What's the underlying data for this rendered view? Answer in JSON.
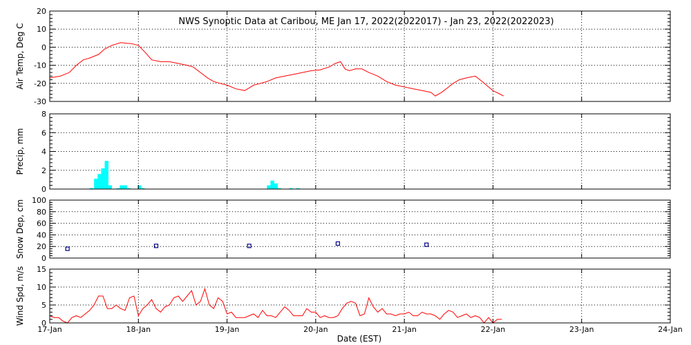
{
  "colors": {
    "air_temp": "#ff0000",
    "precip": "#00ffff",
    "snow": "#000080",
    "wind": "#ff0000",
    "axes": "#000000"
  },
  "chart_data": {
    "title": "NWS Synoptic Data at Caribou, ME   Jan 17, 2022(2022017) - Jan 23, 2022(2022023)",
    "xlabel": "Date (EST)",
    "x_range": [
      0,
      7
    ],
    "x_ticks": [
      {
        "x": 0,
        "label": "17-Jan"
      },
      {
        "x": 1,
        "label": "18-Jan"
      },
      {
        "x": 2,
        "label": "19-Jan"
      },
      {
        "x": 3,
        "label": "20-Jan"
      },
      {
        "x": 4,
        "label": "21-Jan"
      },
      {
        "x": 5,
        "label": "22-Jan"
      },
      {
        "x": 6,
        "label": "23-Jan"
      },
      {
        "x": 7,
        "label": "24-Jan"
      }
    ],
    "panels": [
      {
        "id": "air_temp",
        "type": "line",
        "ylabel": "Air Temp, Deg C",
        "ylim": [
          -30,
          20
        ],
        "y_ticks": [
          20,
          10,
          0,
          -10,
          -20,
          -30
        ],
        "grid": true,
        "series": [
          {
            "x": [
              0,
              0.12,
              0.22,
              0.3,
              0.38,
              0.45,
              0.55,
              0.62,
              0.7,
              0.8,
              0.86,
              0.92,
              1.0,
              1.08,
              1.15,
              1.25,
              1.35,
              1.45,
              1.55,
              1.62,
              1.7,
              1.78,
              1.85,
              1.92,
              2.0,
              2.1,
              2.2,
              2.3,
              2.38,
              2.45,
              2.55,
              2.65,
              2.75,
              2.85,
              2.95,
              3.05,
              3.15,
              3.22,
              3.28,
              3.33,
              3.38,
              3.45,
              3.52,
              3.6,
              3.7,
              3.8,
              3.9,
              4.0,
              4.1,
              4.2,
              4.3,
              4.35,
              4.42,
              4.5,
              4.55,
              4.62,
              4.7,
              4.8,
              4.88,
              4.95,
              5.0,
              5.08,
              5.12
            ],
            "y": [
              -17,
              -16,
              -14,
              -10,
              -7,
              -6,
              -4,
              -1,
              1,
              2.5,
              2.2,
              2,
              1,
              -3,
              -7,
              -8,
              -8,
              -9,
              -10,
              -11,
              -14,
              -17,
              -19,
              -20,
              -21,
              -23,
              -24,
              -21,
              -20,
              -19,
              -17,
              -16,
              -15,
              -14,
              -13,
              -12.5,
              -11,
              -9,
              -8,
              -12,
              -13,
              -12,
              -12,
              -14,
              -16,
              -19,
              -21,
              -22,
              -23,
              -24,
              -25,
              -27,
              -25,
              -22,
              -20,
              -18,
              -17,
              -16,
              -19,
              -22,
              -24,
              -26,
              -27
            ]
          }
        ]
      },
      {
        "id": "precip",
        "type": "bar",
        "ylabel": "Precip, mm",
        "ylim": [
          0,
          8
        ],
        "y_ticks": [
          8,
          6,
          4,
          2,
          0
        ],
        "grid": true,
        "bar_width": 0.042,
        "bars": [
          {
            "x": 0.45,
            "value": 0.1
          },
          {
            "x": 0.5,
            "value": 1.1
          },
          {
            "x": 0.54,
            "value": 1.6
          },
          {
            "x": 0.58,
            "value": 2.2
          },
          {
            "x": 0.62,
            "value": 3.0
          },
          {
            "x": 0.66,
            "value": 0.4
          },
          {
            "x": 0.75,
            "value": 0.1
          },
          {
            "x": 0.79,
            "value": 0.4
          },
          {
            "x": 0.83,
            "value": 0.4
          },
          {
            "x": 0.87,
            "value": 0.1
          },
          {
            "x": 0.99,
            "value": 0.4
          },
          {
            "x": 1.03,
            "value": 0.1
          },
          {
            "x": 2.45,
            "value": 0.4
          },
          {
            "x": 2.49,
            "value": 0.9
          },
          {
            "x": 2.53,
            "value": 0.6
          },
          {
            "x": 2.57,
            "value": 0.1
          },
          {
            "x": 2.7,
            "value": 0.1
          },
          {
            "x": 2.78,
            "value": 0.1
          }
        ]
      },
      {
        "id": "snow",
        "type": "scatter",
        "ylabel": "Snow Dep, cm",
        "ylim": [
          0,
          100
        ],
        "y_ticks": [
          100,
          80,
          60,
          40,
          20,
          0
        ],
        "grid": true,
        "points": [
          {
            "x": 0.2,
            "y": 16
          },
          {
            "x": 1.2,
            "y": 21
          },
          {
            "x": 2.25,
            "y": 21
          },
          {
            "x": 3.25,
            "y": 25
          },
          {
            "x": 4.25,
            "y": 23
          }
        ]
      },
      {
        "id": "wind",
        "type": "line",
        "ylabel": "Wind Spd, m/s",
        "ylim": [
          0,
          15
        ],
        "y_ticks": [
          15,
          10,
          5,
          0
        ],
        "grid": true,
        "series": [
          {
            "x": [
              0,
              0.05,
              0.1,
              0.15,
              0.2,
              0.25,
              0.3,
              0.35,
              0.4,
              0.45,
              0.5,
              0.55,
              0.6,
              0.65,
              0.7,
              0.75,
              0.8,
              0.85,
              0.9,
              0.95,
              1.0,
              1.05,
              1.1,
              1.15,
              1.2,
              1.25,
              1.3,
              1.35,
              1.4,
              1.45,
              1.5,
              1.55,
              1.6,
              1.65,
              1.7,
              1.75,
              1.8,
              1.85,
              1.9,
              1.95,
              2.0,
              2.05,
              2.1,
              2.15,
              2.2,
              2.25,
              2.3,
              2.35,
              2.4,
              2.45,
              2.5,
              2.55,
              2.6,
              2.65,
              2.7,
              2.75,
              2.8,
              2.85,
              2.9,
              2.95,
              3.0,
              3.05,
              3.1,
              3.15,
              3.2,
              3.25,
              3.3,
              3.35,
              3.4,
              3.45,
              3.5,
              3.55,
              3.6,
              3.65,
              3.7,
              3.75,
              3.8,
              3.85,
              3.9,
              3.95,
              4.0,
              4.05,
              4.1,
              4.15,
              4.2,
              4.25,
              4.3,
              4.35,
              4.4,
              4.45,
              4.5,
              4.55,
              4.6,
              4.65,
              4.7,
              4.75,
              4.8,
              4.85,
              4.9,
              4.95,
              5.0,
              5.05,
              5.1
            ],
            "y": [
              2,
              1.5,
              1.5,
              0.5,
              0,
              1.5,
              2,
              1.5,
              2.5,
              3.5,
              5,
              7.5,
              7.5,
              4,
              4,
              5,
              4,
              3.5,
              7,
              7.5,
              2,
              4,
              5,
              6.5,
              4,
              3,
              4.5,
              5,
              7,
              7.5,
              6,
              7.5,
              9,
              5,
              6,
              9.5,
              5,
              4,
              7,
              6,
              2.5,
              3,
              1.5,
              1.5,
              1.5,
              2,
              2.5,
              1.5,
              3.5,
              2,
              2,
              1.5,
              3,
              4.5,
              3.5,
              2,
              2,
              2,
              4,
              3,
              3,
              1.5,
              2,
              1.5,
              1.5,
              2,
              4,
              5.5,
              6,
              5.5,
              2,
              2.5,
              7,
              4.5,
              3,
              4,
              2.5,
              2.5,
              2,
              2.5,
              2.5,
              3,
              2,
              2,
              3,
              2.5,
              2.5,
              2,
              1,
              2.5,
              3.5,
              3,
              1.5,
              2,
              2.5,
              1.5,
              2,
              1.5,
              0,
              1.5,
              0,
              1,
              1
            ]
          }
        ]
      }
    ]
  }
}
